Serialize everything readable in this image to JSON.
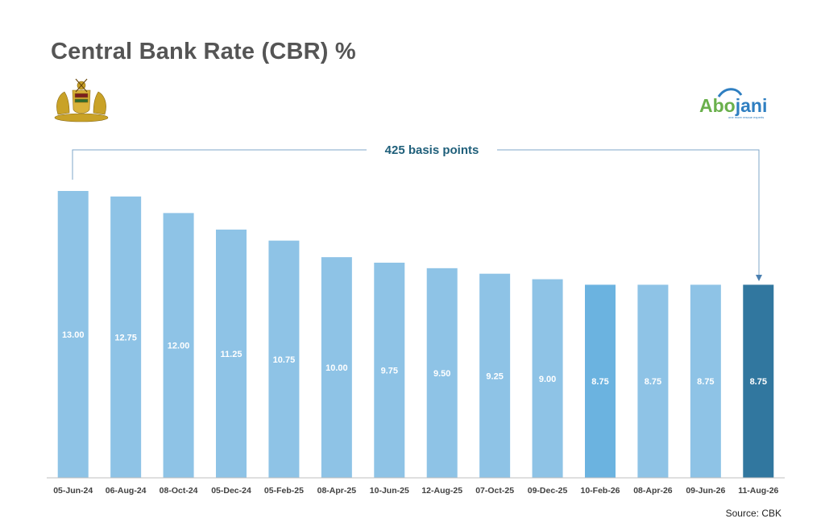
{
  "title": "Central Bank Rate (CBR) %",
  "logo": {
    "prefix": "Abo",
    "suffix": "jani",
    "tagline": "one more rescue experts"
  },
  "source": "Source: CBK",
  "annotation": "425 basis points",
  "colors": {
    "bar": "#8ec3e6",
    "bar_mid": "#6bb3e0",
    "bar_last": "#31779f",
    "annotation": "#1f5f7a",
    "label": "#ffffff"
  },
  "chart_data": {
    "type": "bar",
    "title": "Central Bank Rate (CBR) %",
    "categories": [
      "05-Jun-24",
      "06-Aug-24",
      "08-Oct-24",
      "05-Dec-24",
      "05-Feb-25",
      "08-Apr-25",
      "10-Jun-25",
      "12-Aug-25",
      "07-Oct-25",
      "09-Dec-25",
      "10-Feb-26",
      "08-Apr-26",
      "09-Jun-26",
      "11-Aug-26"
    ],
    "values": [
      13.0,
      12.75,
      12.0,
      11.25,
      10.75,
      10.0,
      9.75,
      9.5,
      9.25,
      9.0,
      8.75,
      8.75,
      8.75,
      8.75
    ],
    "value_labels": [
      "13.00",
      "12.75",
      "12.00",
      "11.25",
      "10.75",
      "10.00",
      "9.75",
      "9.50",
      "9.25",
      "9.00",
      "8.75",
      "8.75",
      "8.75",
      "8.75"
    ],
    "highlight": {
      "10-Feb-26": "bar_mid",
      "11-Aug-26": "bar_last"
    },
    "ylim": [
      0,
      13
    ],
    "grid": false,
    "xlabel": "",
    "ylabel": ""
  }
}
